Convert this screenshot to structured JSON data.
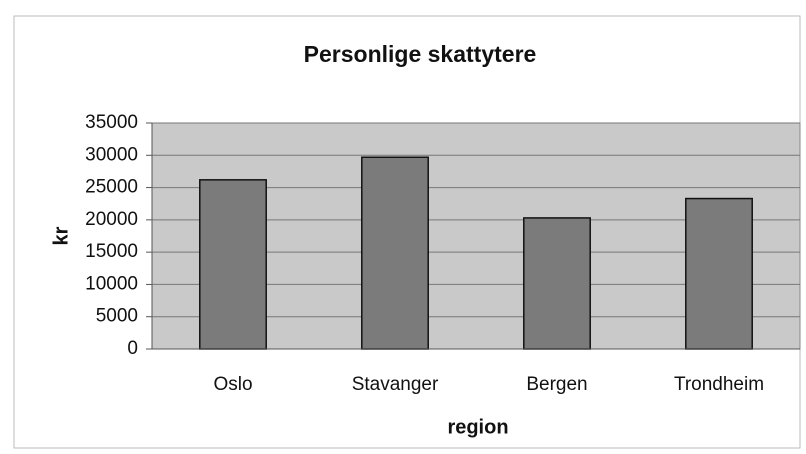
{
  "chart_data": {
    "type": "bar",
    "title": "Personlige skattytere",
    "x_label": "region",
    "y_label": "kr",
    "categories": [
      "Oslo",
      "Stavanger",
      "Bergen",
      "Trondheim"
    ],
    "values": [
      26200,
      29700,
      20300,
      23300
    ],
    "color": "#7b7b7b",
    "ylim": [
      0,
      35000
    ],
    "yticks": [
      0,
      5000,
      10000,
      15000,
      20000,
      25000,
      30000,
      35000
    ],
    "grid": true
  }
}
